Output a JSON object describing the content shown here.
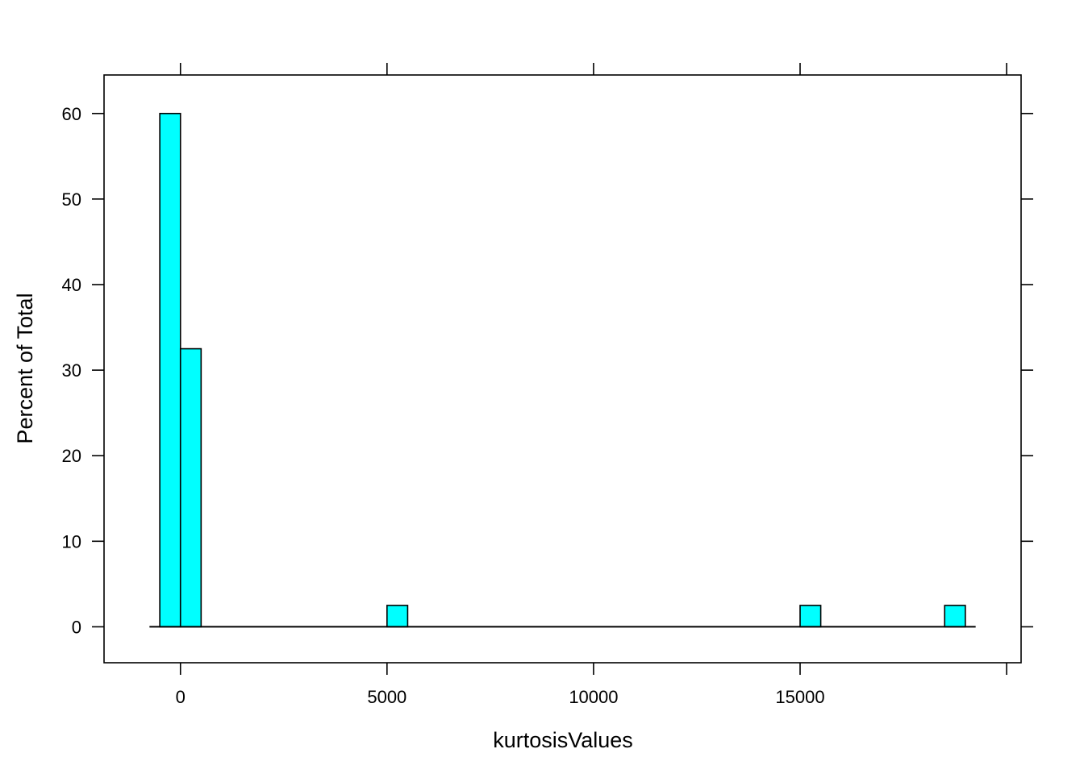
{
  "chart_data": {
    "type": "bar",
    "subtype": "histogram",
    "title": "",
    "xlabel": "kurtosisValues",
    "ylabel": "Percent of Total",
    "xlim": [
      -1850,
      20350
    ],
    "ylim": [
      -4.2,
      64.5
    ],
    "x_ticks": [
      0,
      5000,
      10000,
      15000
    ],
    "x_ticks_top_extra": [
      20000
    ],
    "y_ticks": [
      0,
      10,
      20,
      30,
      40,
      50,
      60
    ],
    "bin_width": 500,
    "baseline_range": [
      -750,
      19250
    ],
    "bins": [
      {
        "start": -500,
        "end": 0,
        "value": 60
      },
      {
        "start": 0,
        "end": 500,
        "value": 32.5
      },
      {
        "start": 5000,
        "end": 5500,
        "value": 2.5
      },
      {
        "start": 15000,
        "end": 15500,
        "value": 2.5
      },
      {
        "start": 18500,
        "end": 19000,
        "value": 2.5
      }
    ],
    "bar_color": "#00FFFF",
    "bar_edge_color": "#000000",
    "grid": false,
    "legend": "none"
  }
}
